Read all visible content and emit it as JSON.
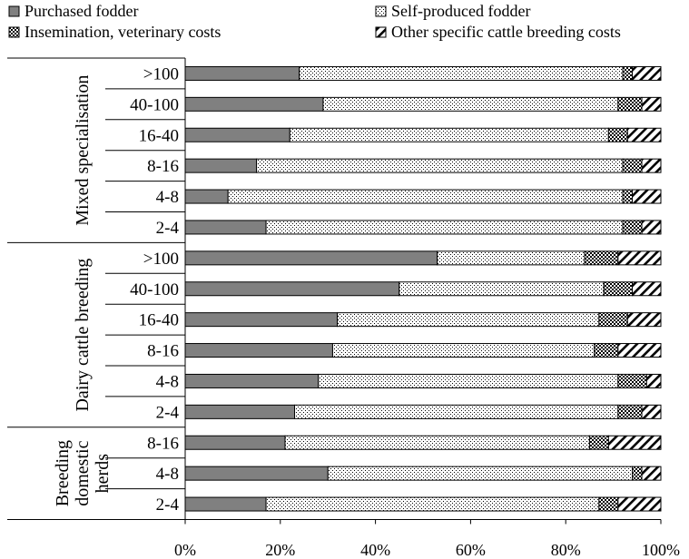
{
  "chart_data": {
    "type": "bar",
    "orientation": "horizontal",
    "stacked": true,
    "xlim": [
      0,
      100
    ],
    "x_ticks": [
      "0%",
      "20%",
      "40%",
      "60%",
      "80%",
      "100%"
    ],
    "legend_position": "top",
    "groups": [
      {
        "label": "Mixed specialisation",
        "categories": [
          ">100",
          "40-100",
          "16-40",
          "8-16",
          "4-8",
          "2-4"
        ]
      },
      {
        "label": "Dairy cattle breeding",
        "categories": [
          ">100",
          "40-100",
          "16-40",
          "8-16",
          "4-8",
          "2-4"
        ]
      },
      {
        "label": "Breeding domestic herds",
        "label_lines": [
          "Breeding",
          "domestic",
          "herds"
        ],
        "categories": [
          "8-16",
          "4-8",
          "2-4"
        ]
      }
    ],
    "categories": [
      ">100",
      "40-100",
      "16-40",
      "8-16",
      "4-8",
      "2-4",
      ">100",
      "40-100",
      "16-40",
      "8-16",
      "4-8",
      "2-4",
      "8-16",
      "4-8",
      "2-4"
    ],
    "series": [
      {
        "name": "Purchased fodder",
        "pattern": "solid-gray",
        "values": [
          24,
          29,
          22,
          15,
          9,
          17,
          53,
          45,
          32,
          31,
          28,
          23,
          21,
          30,
          17
        ]
      },
      {
        "name": "Self-produced fodder",
        "pattern": "dots",
        "values": [
          68,
          62,
          67,
          77,
          83,
          75,
          31,
          43,
          55,
          55,
          63,
          68,
          64,
          64,
          70
        ]
      },
      {
        "name": "Insemination, veterinary costs",
        "pattern": "checker",
        "values": [
          2,
          5,
          4,
          4,
          2,
          4,
          7,
          6,
          6,
          5,
          6,
          5,
          4,
          2,
          4
        ]
      },
      {
        "name": "Other specific cattle breeding costs",
        "pattern": "diagonal",
        "values": [
          6,
          4,
          7,
          4,
          6,
          4,
          9,
          6,
          7,
          9,
          3,
          4,
          11,
          4,
          9
        ]
      }
    ]
  }
}
